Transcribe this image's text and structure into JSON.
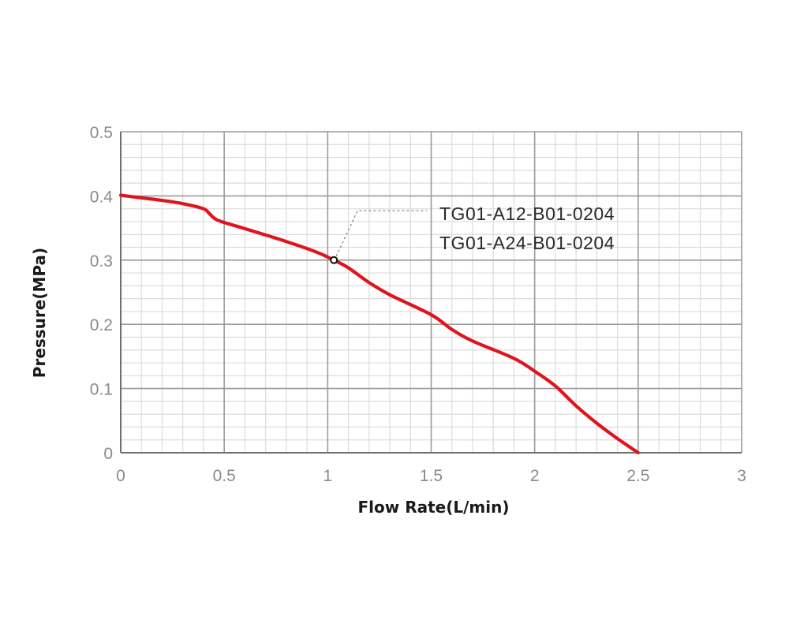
{
  "chart_data": {
    "type": "line",
    "xlabel": "Flow Rate(L/min)",
    "ylabel": "Pressure(MPa)",
    "xlim": [
      0,
      3
    ],
    "ylim": [
      0,
      0.5
    ],
    "x_ticks": [
      0,
      0.5,
      1,
      1.5,
      2,
      2.5,
      3
    ],
    "x_tick_labels": [
      "0",
      "0.5",
      "1",
      "1.5",
      "2",
      "2.5",
      "3"
    ],
    "y_ticks": [
      0,
      0.1,
      0.2,
      0.3,
      0.4,
      0.5
    ],
    "y_tick_labels": [
      "0",
      "0.1",
      "0.2",
      "0.3",
      "0.4",
      "0.5"
    ],
    "grid": true,
    "series": [
      {
        "color": "#e0141e",
        "x": [
          0,
          0.1,
          0.2,
          0.3,
          0.4,
          0.43,
          0.47,
          0.6,
          0.8,
          0.95,
          1.03,
          1.1,
          1.2,
          1.3,
          1.5,
          1.6,
          1.7,
          1.9,
          2.0,
          2.1,
          2.2,
          2.3,
          2.4,
          2.5
        ],
        "y": [
          0.401,
          0.397,
          0.393,
          0.388,
          0.38,
          0.372,
          0.362,
          0.349,
          0.329,
          0.312,
          0.3,
          0.288,
          0.265,
          0.246,
          0.215,
          0.192,
          0.174,
          0.147,
          0.127,
          0.104,
          0.073,
          0.046,
          0.022,
          0.0
        ]
      }
    ],
    "annotations": [
      {
        "lines": [
          "TG01-A12-B01-0204",
          "TG01-A24-B01-0204"
        ],
        "point": {
          "x": 1.03,
          "y": 0.3
        }
      }
    ]
  }
}
